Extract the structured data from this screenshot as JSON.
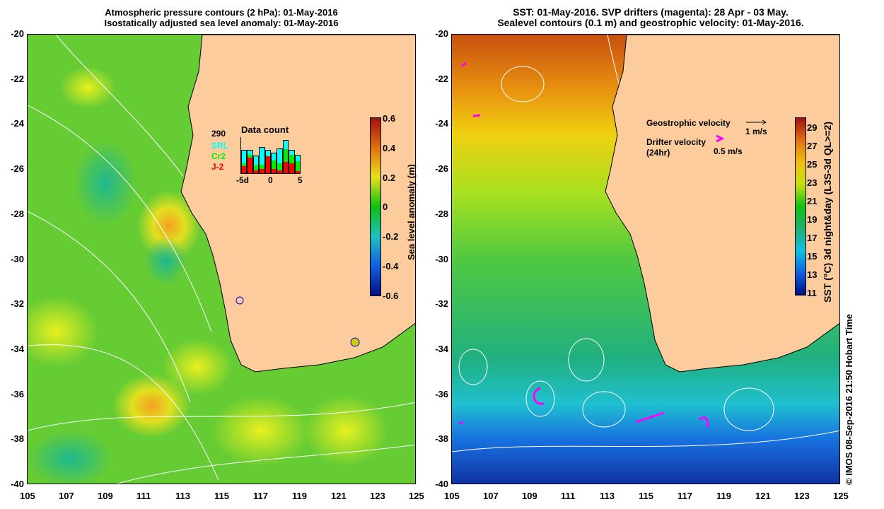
{
  "left": {
    "title1": "Atmospheric pressure contours (2 hPa): 01-May-2016",
    "title2": "Isostatically adjusted sea level anomaly: 01-May-2016",
    "colorbar": {
      "label": "Sea level anomaly (m)",
      "ticks": [
        "0.6",
        "0.4",
        "0.2",
        "0",
        "-0.2",
        "-0.4",
        "-0.6"
      ]
    },
    "inset": {
      "count": "290",
      "sat1": "SRL",
      "sat2": "Cr2",
      "sat3": "J-2",
      "title": "Data count",
      "xticks": [
        "-5d",
        "0",
        "5"
      ],
      "bars": [
        {
          "srl": 0.45,
          "cr2": 0.1,
          "j2": 0.25
        },
        {
          "srl": 0.15,
          "cr2": 0.1,
          "j2": 0.55
        },
        {
          "srl": 0.3,
          "cr2": 0.2,
          "j2": 0.1
        },
        {
          "srl": 0.6,
          "cr2": 0.15,
          "j2": 0.15
        },
        {
          "srl": 0.2,
          "cr2": 0,
          "j2": 0.6
        },
        {
          "srl": 0.25,
          "cr2": 0.3,
          "j2": 0.15
        },
        {
          "srl": 0.5,
          "cr2": 0.25,
          "j2": 0.1
        },
        {
          "srl": 0.3,
          "cr2": 0.45,
          "j2": 0.4
        },
        {
          "srl": 0.15,
          "cr2": 0.3,
          "j2": 0.35
        },
        {
          "srl": 0.2,
          "cr2": 0.35,
          "j2": 0.08
        }
      ]
    }
  },
  "right": {
    "title1": "SST: 01-May-2016. SVP drifters (magenta): 28 Apr - 03 May.",
    "title2": "Sealevel contours (0.1 m) and geostrophic velocity: 01-May-2016.",
    "colorbar": {
      "label": "SST (°C) 3d night&day (L3S-3d QL>=2)",
      "ticks": [
        "29",
        "27",
        "25",
        "23",
        "21",
        "19",
        "17",
        "15",
        "13",
        "11"
      ]
    },
    "legend": {
      "geo": "Geostrophic velocity",
      "geo_scale": "1 m/s",
      "drifter": "Drifter velocity",
      "drifter_period": "(24hr)",
      "drifter_scale": "0.5 m/s"
    }
  },
  "axes": {
    "lat": [
      "-20",
      "-22",
      "-24",
      "-26",
      "-28",
      "-30",
      "-32",
      "-34",
      "-36",
      "-38",
      "-40"
    ],
    "lon": [
      "105",
      "107",
      "109",
      "111",
      "113",
      "115",
      "117",
      "119",
      "121",
      "123",
      "125"
    ]
  },
  "credit": "© IMOS 08-Sep-2016 21:50 Hobart Time",
  "colors": {
    "land": "#fccc9c",
    "drifter": "#ff00ff",
    "srl": "#00ffff",
    "cr2": "#00ee00",
    "j2": "#ff0000"
  }
}
